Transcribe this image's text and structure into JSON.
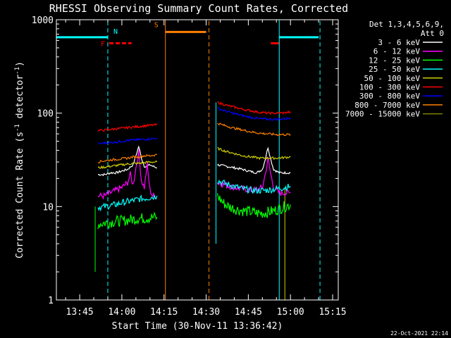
{
  "chart_data": {
    "type": "line",
    "title": "RHESSI Observing Summary Count Rates, Corrected",
    "xlabel": "Start Time (30-Nov-11 13:36:42)",
    "ylabel_main": "Corrected Count Rate (s",
    "ylabel_sup1": "-1",
    "ylabel_mid": " detector",
    "ylabel_sup2": "-1",
    "ylabel_end": ")",
    "yscale": "log",
    "ylim": [
      1,
      1000
    ],
    "xlim_minutes": [
      36.7,
      137
    ],
    "x_ticks": [
      {
        "m": 45,
        "label": "13:45"
      },
      {
        "m": 60,
        "label": "14:00"
      },
      {
        "m": 75,
        "label": "14:15"
      },
      {
        "m": 90,
        "label": "14:30"
      },
      {
        "m": 105,
        "label": "14:45"
      },
      {
        "m": 120,
        "label": "15:00"
      },
      {
        "m": 135,
        "label": "15:15"
      }
    ],
    "y_ticks": [
      {
        "v": 1,
        "label": "1"
      },
      {
        "v": 10,
        "label": "10"
      },
      {
        "v": 100,
        "label": "100"
      },
      {
        "v": 1000,
        "label": "1000"
      }
    ],
    "legend": {
      "header1": "Det 1,3,4,5,6,9,",
      "header2": "Att 0",
      "entries": [
        {
          "label": "3 - 6 keV",
          "color": "#ffffff"
        },
        {
          "label": "6 - 12 keV",
          "color": "#ff00ff"
        },
        {
          "label": "12 - 25 keV",
          "color": "#00ff00"
        },
        {
          "label": "25 - 50 keV",
          "color": "#00ffff"
        },
        {
          "label": "50 - 100 keV",
          "color": "#cccc00"
        },
        {
          "label": "100 - 300 keV",
          "color": "#ff0000"
        },
        {
          "label": "300 - 800 keV",
          "color": "#0000ff"
        },
        {
          "label": "800 - 7000 keV",
          "color": "#ff8000"
        },
        {
          "label": "7000 - 15000 keV",
          "color": "#808000"
        }
      ]
    },
    "series": [
      {
        "name": "3 - 6 keV",
        "color": "#ffffff",
        "segments": [
          {
            "x": [
              51.5,
              54,
              56,
              58,
              60,
              62,
              64,
              65,
              66,
              67,
              68,
              69,
              70,
              71,
              72.5
            ],
            "y": [
              22,
              22,
              23,
              23,
              24,
              25,
              28,
              35,
              44,
              33,
              27,
              27,
              28,
              27,
              26
            ]
          },
          {
            "x": [
              94,
              97,
              100,
              103,
              105,
              108,
              110,
              111,
              112,
              113,
              114,
              116,
              118,
              120
            ],
            "y": [
              28,
              27,
              26,
              25,
              24,
              23,
              25,
              32,
              43,
              32,
              25,
              23,
              23,
              23
            ]
          }
        ]
      },
      {
        "name": "6 - 12 keV",
        "color": "#ff00ff",
        "segments": [
          {
            "x": [
              51.5,
              54,
              56,
              58,
              60,
              62,
              63,
              64,
              65,
              66,
              67,
              68,
              69,
              70,
              71,
              72.5
            ],
            "y": [
              13,
              13,
              14,
              15,
              16,
              18,
              22,
              17,
              26,
              38,
              19,
              16,
              28,
              15,
              13,
              13
            ]
          },
          {
            "x": [
              94,
              97,
              100,
              103,
              106,
              108,
              110,
              111,
              112,
              113,
              114,
              116,
              118,
              120
            ],
            "y": [
              18,
              17,
              16,
              15.5,
              15,
              15,
              16,
              22,
              32,
              22,
              16,
              14,
              14,
              14
            ]
          }
        ]
      },
      {
        "name": "12 - 25 keV",
        "color": "#00ff00",
        "segments": [
          {
            "x": [
              51.5,
              54,
              56,
              58,
              60,
              62,
              64,
              66,
              68,
              70,
              72.5
            ],
            "y": [
              6.5,
              6.7,
              6.8,
              7,
              7,
              7.2,
              7.3,
              7.5,
              7.5,
              7.6,
              7.7
            ]
          },
          {
            "x": [
              94,
              96,
              98,
              100,
              103,
              106,
              108,
              110,
              112,
              114,
              116,
              118,
              120
            ],
            "y": [
              13,
              11,
              10,
              9.5,
              9,
              8.8,
              8.5,
              8.5,
              8.7,
              9,
              9.5,
              10,
              10.5
            ]
          }
        ]
      },
      {
        "name": "25 - 50 keV",
        "color": "#00ffff",
        "segments": [
          {
            "x": [
              51.5,
              54,
              56,
              58,
              60,
              62,
              64,
              66,
              68,
              70,
              72.5
            ],
            "y": [
              9.8,
              10,
              10.3,
              10.5,
              11,
              11.3,
              11.6,
              12,
              12.2,
              12.5,
              13
            ]
          },
          {
            "x": [
              94,
              97,
              100,
              103,
              106,
              109,
              112,
              115,
              118,
              120
            ],
            "y": [
              19,
              17.5,
              16.5,
              15.5,
              15,
              14.8,
              15,
              15.5,
              16,
              16.5
            ]
          }
        ]
      },
      {
        "name": "50 - 100 keV",
        "color": "#cccc00",
        "segments": [
          {
            "x": [
              51.5,
              54,
              56,
              58,
              60,
              62,
              64,
              66,
              68,
              70,
              72.5
            ],
            "y": [
              26,
              26.5,
              27,
              27.5,
              28,
              28.5,
              29,
              29,
              29.5,
              30,
              30
            ]
          },
          {
            "x": [
              94,
              97,
              100,
              103,
              106,
              109,
              112,
              115,
              118,
              120
            ],
            "y": [
              42,
              39,
              37,
              35,
              34,
              33,
              33,
              33,
              33.5,
              34
            ]
          }
        ]
      },
      {
        "name": "100 - 300 keV",
        "color": "#ff0000",
        "segments": [
          {
            "x": [
              51.5,
              54,
              56,
              58,
              60,
              62,
              64,
              66,
              68,
              70,
              72.5
            ],
            "y": [
              65,
              66,
              67,
              68,
              69,
              70,
              71,
              72,
              73,
              74,
              75
            ]
          },
          {
            "x": [
              94,
              97,
              100,
              103,
              106,
              109,
              112,
              115,
              118,
              120
            ],
            "y": [
              130,
              122,
              116,
              110,
              106,
              102,
              100,
              100,
              101,
              103
            ]
          }
        ]
      },
      {
        "name": "300 - 800 keV",
        "color": "#0000ff",
        "segments": [
          {
            "x": [
              51.5,
              54,
              56,
              58,
              60,
              62,
              64,
              66,
              68,
              70,
              72.5
            ],
            "y": [
              47,
              48,
              48.5,
              49,
              50,
              51,
              51.5,
              52,
              52.5,
              53,
              54
            ]
          },
          {
            "x": [
              94,
              97,
              100,
              103,
              106,
              109,
              112,
              115,
              118,
              120
            ],
            "y": [
              113,
              105,
              99,
              94,
              90,
              87,
              86,
              86,
              87,
              89
            ]
          }
        ]
      },
      {
        "name": "800 - 7000 keV",
        "color": "#ff8000",
        "segments": [
          {
            "x": [
              51.5,
              54,
              56,
              58,
              60,
              62,
              64,
              66,
              68,
              70,
              72.5
            ],
            "y": [
              30,
              31,
              31.5,
              32,
              32.5,
              33,
              34,
              34,
              35,
              35,
              36
            ]
          },
          {
            "x": [
              94,
              97,
              100,
              103,
              106,
              109,
              112,
              115,
              118,
              120
            ],
            "y": [
              78,
              73,
              69,
              66,
              63,
              61,
              60,
              59,
              59,
              59
            ]
          }
        ]
      }
    ],
    "annotations": [
      {
        "type": "hline",
        "color": "#00ffff",
        "y": 650,
        "x": [
          36.7,
          55
        ]
      },
      {
        "type": "hline",
        "color": "#00ffff",
        "y": 650,
        "x": [
          116,
          130
        ]
      },
      {
        "type": "hline",
        "color": "#ff8000",
        "y": 740,
        "x": [
          75.5,
          90
        ]
      },
      {
        "type": "hline",
        "color": "#ff0000",
        "y": 560,
        "x": [
          55.5,
          63.5
        ],
        "dashed": true
      },
      {
        "type": "hline",
        "color": "#ff0000",
        "y": 560,
        "x": [
          113,
          116
        ]
      },
      {
        "type": "vline",
        "color": "#00ffff",
        "x": 55,
        "dashed": true
      },
      {
        "type": "vline",
        "color": "#00ffff",
        "x": 130.5,
        "dashed": true
      },
      {
        "type": "vline",
        "color": "#00ffff",
        "x": 116
      },
      {
        "type": "vline",
        "color": "#ff8000",
        "x": 75.5
      },
      {
        "type": "vline",
        "color": "#ff8000",
        "x": 91,
        "dashed": true
      },
      {
        "type": "vline",
        "color": "#00ffff",
        "x": 93.5,
        "y": [
          4,
          130
        ]
      },
      {
        "type": "vline",
        "color": "#cccc00",
        "x": 118,
        "y": [
          1,
          16
        ]
      },
      {
        "type": "vline",
        "color": "#00ff00",
        "x": 50.5,
        "y": [
          2,
          10
        ]
      },
      {
        "type": "label",
        "text": "N",
        "color": "#00ffff",
        "x": 57,
        "y": 760
      },
      {
        "type": "label",
        "text": "F",
        "color": "#ff0000",
        "x": 52.5,
        "y": 560
      },
      {
        "type": "label",
        "text": "S",
        "color": "#ff8000",
        "x": 71.5,
        "y": 890
      }
    ],
    "timestamp": "22-Oct-2021 22:14"
  }
}
